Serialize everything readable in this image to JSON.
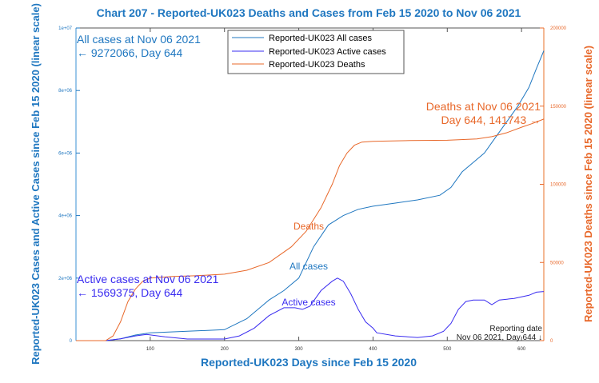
{
  "chart_data": {
    "type": "line",
    "title": "Chart 207 - Reported-UK023 Deaths and Cases from Feb 15 2020 to Nov 06 2021",
    "xlabel": "Reported-UK023 Days since Feb 15 2020",
    "ylabel_left": "Reported-UK023 Cases and Active Cases since Feb 15 2020 (linear scale)",
    "ylabel_right": "Reported-UK023 Deaths since Feb 15 2020 (linear scale)",
    "xlim": [
      0,
      630
    ],
    "ylim_left": [
      0,
      10000000
    ],
    "ylim_right": [
      0,
      200000
    ],
    "x_ticks": [
      "100",
      "200",
      "300",
      "400",
      "500",
      "600"
    ],
    "y_ticks_left": [
      "0",
      "2e+06",
      "4e+06",
      "6e+06",
      "8e+06",
      "1e+07"
    ],
    "y_ticks_right": [
      "0",
      "50000",
      "100000",
      "150000",
      "200000"
    ],
    "legend_position": "top-center",
    "series": [
      {
        "name": "Reported-UK023 All cases",
        "axis": "left",
        "color": "#1f77c0",
        "x": [
          0,
          40,
          60,
          80,
          100,
          150,
          200,
          230,
          260,
          280,
          300,
          320,
          340,
          360,
          380,
          400,
          430,
          460,
          490,
          505,
          520,
          535,
          550,
          565,
          580,
          595,
          610,
          620,
          630
        ],
        "y": [
          0,
          0,
          60000,
          180000,
          250000,
          300000,
          350000,
          700000,
          1300000,
          1600000,
          2000000,
          3000000,
          3700000,
          4000000,
          4200000,
          4300000,
          4400000,
          4500000,
          4650000,
          4900000,
          5400000,
          5700000,
          6000000,
          6500000,
          7000000,
          7500000,
          8100000,
          8700000,
          9272066
        ]
      },
      {
        "name": "Reported-UK023 Active cases",
        "axis": "left",
        "color": "#3a2cf0",
        "x": [
          0,
          40,
          60,
          80,
          95,
          120,
          150,
          200,
          220,
          240,
          260,
          280,
          295,
          305,
          315,
          330,
          345,
          352,
          360,
          370,
          380,
          390,
          400,
          405,
          430,
          460,
          480,
          495,
          505,
          515,
          525,
          535,
          550,
          560,
          570,
          590,
          610,
          620,
          630
        ],
        "y": [
          0,
          0,
          60000,
          150000,
          200000,
          120000,
          50000,
          50000,
          150000,
          400000,
          800000,
          1050000,
          1050000,
          1000000,
          1100000,
          1600000,
          1900000,
          2000000,
          1900000,
          1500000,
          1000000,
          600000,
          400000,
          250000,
          150000,
          100000,
          150000,
          300000,
          550000,
          1000000,
          1250000,
          1300000,
          1300000,
          1150000,
          1300000,
          1350000,
          1450000,
          1550000,
          1569375
        ]
      },
      {
        "name": "Reported-UK023 Deaths",
        "axis": "right",
        "color": "#e8682a",
        "x": [
          0,
          40,
          50,
          60,
          70,
          80,
          90,
          100,
          130,
          160,
          200,
          230,
          260,
          290,
          310,
          330,
          345,
          355,
          365,
          375,
          385,
          400,
          450,
          500,
          540,
          560,
          580,
          600,
          615,
          630
        ],
        "y": [
          0,
          0,
          3000,
          12000,
          25000,
          33000,
          38000,
          40000,
          41000,
          41500,
          42500,
          45000,
          50000,
          60000,
          70000,
          85000,
          100000,
          112000,
          120000,
          125000,
          127000,
          127500,
          128000,
          128200,
          129000,
          130500,
          133000,
          136500,
          139000,
          141743
        ]
      }
    ],
    "annotations": {
      "all_cases_line1": "All cases at Nov 06 2021",
      "all_cases_line2": "← 9272066, Day 644",
      "active_line1": "Active cases at Nov 06 2021",
      "active_line2": "← 1569375, Day 644",
      "deaths_line1": "Deaths at Nov 06 2021",
      "deaths_line2": "Day 644, 141743 →",
      "deaths_label": "Deaths",
      "all_cases_label": "All cases",
      "active_label": "Active cases",
      "reporting_line1": "Reporting date",
      "reporting_line2": "Nov 06 2021, Day 644 ↓"
    }
  }
}
